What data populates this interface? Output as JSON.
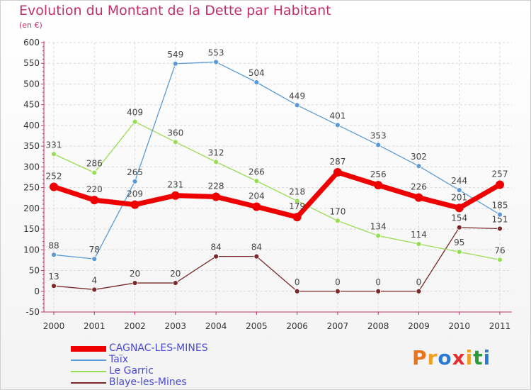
{
  "title": "Evolution du Montant de la Dette par Habitant",
  "subtitle": "(en €)",
  "brand": {
    "text": "Proxiti",
    "colors": [
      "#e8741c",
      "#f0a020",
      "#2a7ad4",
      "#e03030",
      "#f0a020",
      "#2a9a3a",
      "#2a7ad4"
    ]
  },
  "chart_data": {
    "type": "line",
    "x": [
      "2000",
      "2001",
      "2002",
      "2003",
      "2004",
      "2005",
      "2006",
      "2007",
      "2008",
      "2009",
      "2010",
      "2011"
    ],
    "ylim": [
      -50,
      600
    ],
    "yticks": [
      -50,
      0,
      50,
      100,
      150,
      200,
      250,
      300,
      350,
      400,
      450,
      500,
      550,
      600
    ],
    "grid": true,
    "legend": "bottom-left",
    "series": [
      {
        "name": "CAGNAC-LES-MINES",
        "color": "#ee0000",
        "values": [
          252,
          220,
          209,
          231,
          228,
          204,
          179,
          287,
          256,
          226,
          201,
          257
        ]
      },
      {
        "name": "Taïx",
        "color": "#5b9bd5",
        "values": [
          88,
          78,
          265,
          549,
          553,
          504,
          449,
          401,
          353,
          302,
          244,
          185
        ]
      },
      {
        "name": "Le Garric",
        "color": "#99dd55",
        "values": [
          331,
          286,
          409,
          360,
          312,
          266,
          218,
          170,
          134,
          114,
          95,
          76
        ]
      },
      {
        "name": "Blaye-les-Mines",
        "color": "#7a2a2a",
        "values": [
          13,
          4,
          20,
          20,
          84,
          84,
          0,
          0,
          0,
          0,
          154,
          151
        ]
      }
    ]
  }
}
